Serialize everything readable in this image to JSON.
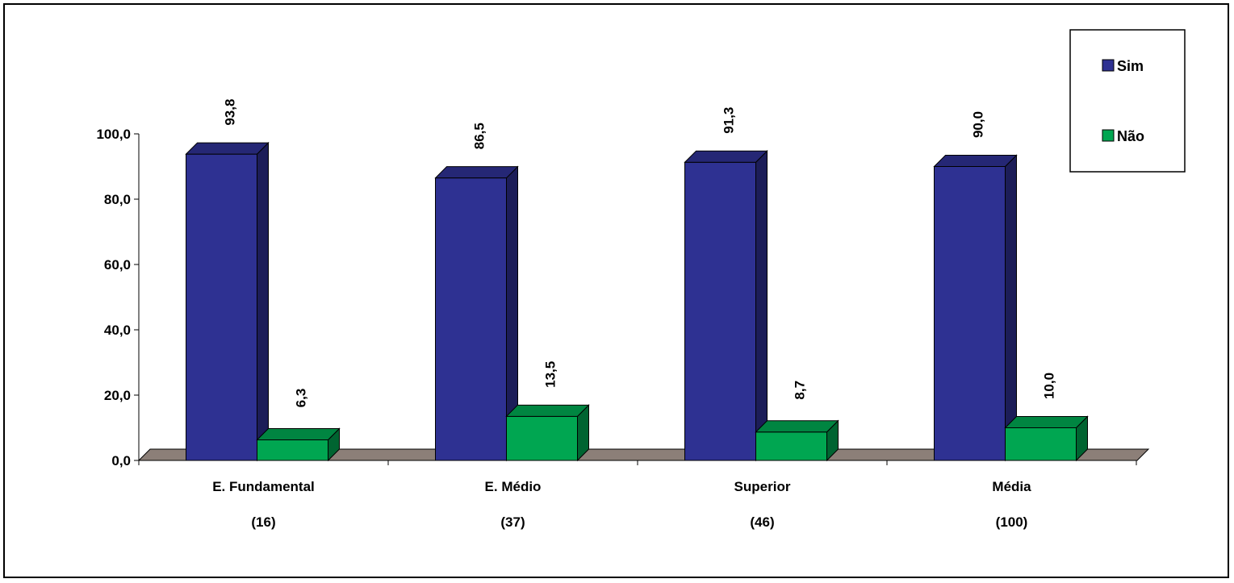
{
  "chart_data": {
    "type": "bar",
    "categories": [
      "E. Fundamental",
      "E. Médio",
      "Superior",
      "Média"
    ],
    "category_counts": [
      "(16)",
      "(37)",
      "(46)",
      "(100)"
    ],
    "series": [
      {
        "name": "Sim",
        "values": [
          93.8,
          86.5,
          91.3,
          90.0
        ],
        "labels": [
          "93,8",
          "86,5",
          "91,3",
          "90,0"
        ],
        "color": "#2e3192"
      },
      {
        "name": "Não",
        "values": [
          6.3,
          13.5,
          8.7,
          10.0
        ],
        "labels": [
          "6,3",
          "13,5",
          "8,7",
          "10,0"
        ],
        "color": "#00a651"
      }
    ],
    "y_ticks": [
      "0,0",
      "20,0",
      "40,0",
      "60,0",
      "80,0",
      "100,0"
    ],
    "ylim": [
      0,
      100
    ],
    "legend_position": "top-right",
    "grid": false,
    "three_d": true
  }
}
